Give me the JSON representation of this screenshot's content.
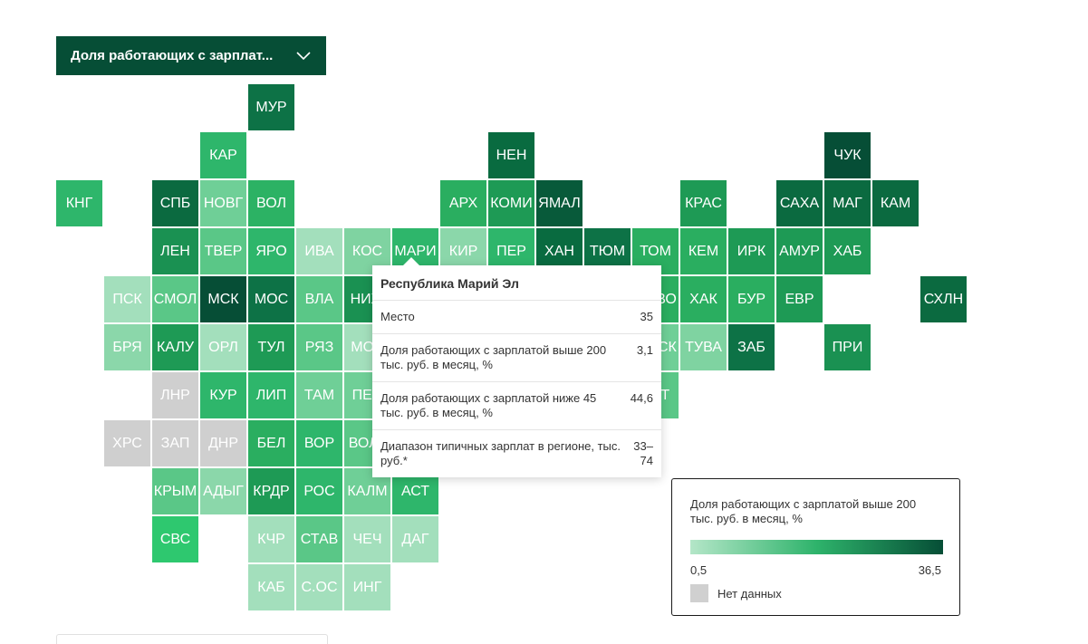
{
  "dropdown": {
    "label": "Доля работающих с зарплат..."
  },
  "regions": [
    {
      "name": "МУР",
      "c": 5,
      "r": 0,
      "color": "#0d7246"
    },
    {
      "name": "КАР",
      "c": 4,
      "r": 1,
      "color": "#2eb66b"
    },
    {
      "name": "НЕН",
      "c": 10,
      "r": 1,
      "color": "#096b40"
    },
    {
      "name": "ЧУК",
      "c": 17,
      "r": 1,
      "color": "#064e36"
    },
    {
      "name": "КНГ",
      "c": 1,
      "r": 2,
      "color": "#2eb66b"
    },
    {
      "name": "СПБ",
      "c": 3,
      "r": 2,
      "color": "#0b6a40"
    },
    {
      "name": "НОВГ",
      "c": 4,
      "r": 2,
      "color": "#6fcf97"
    },
    {
      "name": "ВОЛ",
      "c": 5,
      "r": 2,
      "color": "#2cb264"
    },
    {
      "name": "АРХ",
      "c": 9,
      "r": 2,
      "color": "#2aae60"
    },
    {
      "name": "КОМИ",
      "c": 10,
      "r": 2,
      "color": "#1e9a55"
    },
    {
      "name": "ЯМАЛ",
      "c": 11,
      "r": 2,
      "color": "#085a3a"
    },
    {
      "name": "КРАС",
      "c": 14,
      "r": 2,
      "color": "#1e9a55"
    },
    {
      "name": "САХА",
      "c": 16,
      "r": 2,
      "color": "#0b6a40"
    },
    {
      "name": "МАГ",
      "c": 17,
      "r": 2,
      "color": "#0b6a40"
    },
    {
      "name": "КАМ",
      "c": 18,
      "r": 2,
      "color": "#0b6a40"
    },
    {
      "name": "ЛЕН",
      "c": 3,
      "r": 3,
      "color": "#1a9152"
    },
    {
      "name": "ТВЕР",
      "c": 4,
      "r": 3,
      "color": "#5ac787"
    },
    {
      "name": "ЯРО",
      "c": 5,
      "r": 3,
      "color": "#2eb66b"
    },
    {
      "name": "ИВА",
      "c": 6,
      "r": 3,
      "color": "#a3dfbc"
    },
    {
      "name": "КОС",
      "c": 7,
      "r": 3,
      "color": "#7fd3a1"
    },
    {
      "name": "МАРИ",
      "c": 8,
      "r": 3,
      "color": "#2eb66b"
    },
    {
      "name": "КИР",
      "c": 9,
      "r": 3,
      "color": "#8bd7aa"
    },
    {
      "name": "ПЕР",
      "c": 10,
      "r": 3,
      "color": "#2eb66b"
    },
    {
      "name": "ХАН",
      "c": 11,
      "r": 3,
      "color": "#096b40"
    },
    {
      "name": "ТЮМ",
      "c": 12,
      "r": 3,
      "color": "#0d7246"
    },
    {
      "name": "ТОМ",
      "c": 13,
      "r": 3,
      "color": "#2aae60"
    },
    {
      "name": "КЕМ",
      "c": 14,
      "r": 3,
      "color": "#2aae60"
    },
    {
      "name": "ИРК",
      "c": 15,
      "r": 3,
      "color": "#1e9a55"
    },
    {
      "name": "АМУР",
      "c": 16,
      "r": 3,
      "color": "#1e9a55"
    },
    {
      "name": "ХАБ",
      "c": 17,
      "r": 3,
      "color": "#1e9a55"
    },
    {
      "name": "ПСК",
      "c": 2,
      "r": 4,
      "color": "#a3dfbc"
    },
    {
      "name": "СМОЛ",
      "c": 3,
      "r": 4,
      "color": "#5ac787"
    },
    {
      "name": "МСК",
      "c": 4,
      "r": 4,
      "color": "#064e36"
    },
    {
      "name": "МОС",
      "c": 5,
      "r": 4,
      "color": "#0d7246"
    },
    {
      "name": "ВЛА",
      "c": 6,
      "r": 4,
      "color": "#5ac787"
    },
    {
      "name": "НИЖ",
      "c": 7,
      "r": 4,
      "color": "#1a9152"
    },
    {
      "name": "НОВО",
      "c": 13,
      "r": 4,
      "color": "#2aae60"
    },
    {
      "name": "ХАК",
      "c": 14,
      "r": 4,
      "color": "#2aae60"
    },
    {
      "name": "БУР",
      "c": 15,
      "r": 4,
      "color": "#2aae60"
    },
    {
      "name": "ЕВР",
      "c": 16,
      "r": 4,
      "color": "#1e9a55"
    },
    {
      "name": "СХЛН",
      "c": 19,
      "r": 4,
      "color": "#0b6a40"
    },
    {
      "name": "БРЯ",
      "c": 2,
      "r": 5,
      "color": "#8bd7aa"
    },
    {
      "name": "КАЛУ",
      "c": 3,
      "r": 5,
      "color": "#1e9a55"
    },
    {
      "name": "ОРЛ",
      "c": 4,
      "r": 5,
      "color": "#a3dfbc"
    },
    {
      "name": "ТУЛ",
      "c": 5,
      "r": 5,
      "color": "#1e9a55"
    },
    {
      "name": "РЯЗ",
      "c": 6,
      "r": 5,
      "color": "#5ac787"
    },
    {
      "name": "МОР",
      "c": 7,
      "r": 5,
      "color": "#a3dfbc"
    },
    {
      "name": "ОМСК",
      "c": 13,
      "r": 5,
      "color": "#6fcf97"
    },
    {
      "name": "ТУВА",
      "c": 14,
      "r": 5,
      "color": "#7fd3a1"
    },
    {
      "name": "ЗАБ",
      "c": 15,
      "r": 5,
      "color": "#0d7246"
    },
    {
      "name": "ПРИ",
      "c": 17,
      "r": 5,
      "color": "#1a9152"
    },
    {
      "name": "ЛНР",
      "c": 3,
      "r": 6,
      "color": "#cfcfcf"
    },
    {
      "name": "КУР",
      "c": 4,
      "r": 6,
      "color": "#2eb66b"
    },
    {
      "name": "ЛИП",
      "c": 5,
      "r": 6,
      "color": "#2eb66b"
    },
    {
      "name": "ТАМ",
      "c": 6,
      "r": 6,
      "color": "#6fcf97"
    },
    {
      "name": "ПЕН",
      "c": 7,
      "r": 6,
      "color": "#6fcf97"
    },
    {
      "name": "АЛТ",
      "c": 13,
      "r": 6,
      "color": "#5ac787"
    },
    {
      "name": "ХРС",
      "c": 2,
      "r": 7,
      "color": "#cfcfcf"
    },
    {
      "name": "ЗАП",
      "c": 3,
      "r": 7,
      "color": "#cfcfcf"
    },
    {
      "name": "ДНР",
      "c": 4,
      "r": 7,
      "color": "#cfcfcf"
    },
    {
      "name": "БЕЛ",
      "c": 5,
      "r": 7,
      "color": "#2aae60"
    },
    {
      "name": "ВОР",
      "c": 6,
      "r": 7,
      "color": "#2eb66b"
    },
    {
      "name": "ВОЛГ",
      "c": 7,
      "r": 7,
      "color": "#5ac787"
    },
    {
      "name": "КРЫМ",
      "c": 3,
      "r": 8,
      "color": "#5ac787"
    },
    {
      "name": "АДЫГ",
      "c": 4,
      "r": 8,
      "color": "#8bd7aa"
    },
    {
      "name": "КРДР",
      "c": 5,
      "r": 8,
      "color": "#1e9a55"
    },
    {
      "name": "РОС",
      "c": 6,
      "r": 8,
      "color": "#2eb66b"
    },
    {
      "name": "КАЛМ",
      "c": 7,
      "r": 8,
      "color": "#6fcf97"
    },
    {
      "name": "АСТ",
      "c": 8,
      "r": 8,
      "color": "#2eb66b"
    },
    {
      "name": "СВС",
      "c": 3,
      "r": 9,
      "color": "#2ec86f"
    },
    {
      "name": "КЧР",
      "c": 5,
      "r": 9,
      "color": "#a3dfbc"
    },
    {
      "name": "СТАВ",
      "c": 6,
      "r": 9,
      "color": "#5ac787"
    },
    {
      "name": "ЧЕЧ",
      "c": 7,
      "r": 9,
      "color": "#a3dfbc"
    },
    {
      "name": "ДАГ",
      "c": 8,
      "r": 9,
      "color": "#a3dfbc"
    },
    {
      "name": "КАБ",
      "c": 5,
      "r": 10,
      "color": "#a3dfbc"
    },
    {
      "name": "С.ОС",
      "c": 6,
      "r": 10,
      "color": "#a3dfbc"
    },
    {
      "name": "ИНГ",
      "c": 7,
      "r": 10,
      "color": "#a3dfbc"
    }
  ],
  "tooltip": {
    "title": "Республика Марий Эл",
    "rows": [
      {
        "label": "Место",
        "value": "35"
      },
      {
        "label": "Доля работающих с зарплатой выше 200 тыс. руб. в месяц, %",
        "value": "3,1"
      },
      {
        "label": "Доля работающих с зарплатой ниже 45 тыс. руб. в месяц, %",
        "value": "44,6"
      },
      {
        "label": "Диапазон типичных зарплат в регионе, тыс. руб.*",
        "value": "33–74"
      }
    ]
  },
  "legend": {
    "title": "Доля работающих с зарплатой выше 200 тыс. руб. в месяц, %",
    "min": "0,5",
    "max": "36,5",
    "no_data": "Нет данных"
  }
}
